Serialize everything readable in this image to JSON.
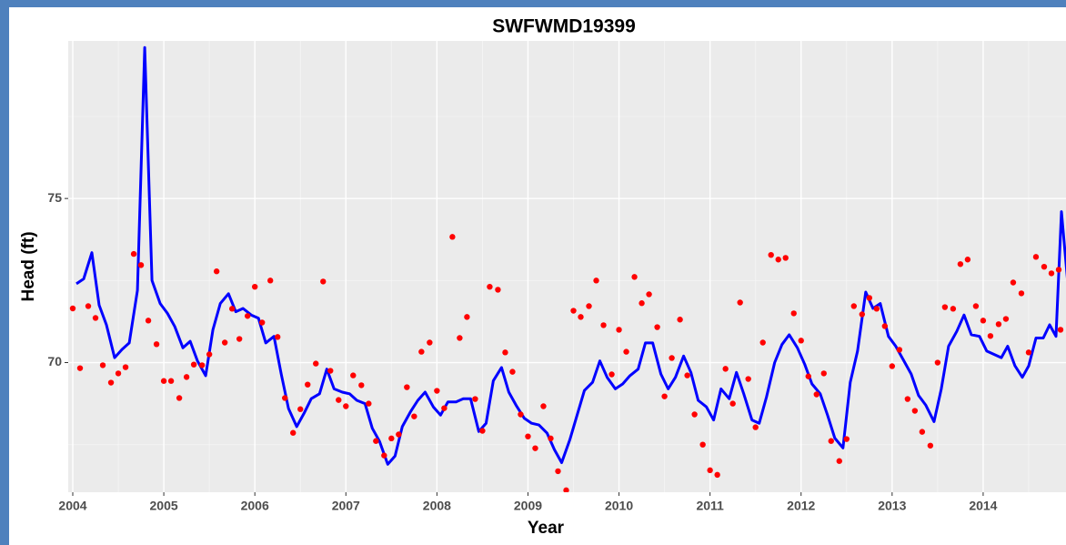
{
  "chart_data": {
    "type": "line",
    "title": "SWFWMD19399",
    "x_label": "Year",
    "y_label": "Head (ft)",
    "xlim": [
      2003.95,
      2014.91
    ],
    "ylim": [
      66.05,
      79.8
    ],
    "xticks": [
      2004,
      2005,
      2006,
      2007,
      2008,
      2009,
      2010,
      2011,
      2012,
      2013,
      2014
    ],
    "yticks": [
      70,
      75
    ],
    "xminor": [
      2004.5,
      2005.5,
      2006.5,
      2007.5,
      2008.5,
      2009.5,
      2010.5,
      2011.5,
      2012.5,
      2013.5,
      2014.5
    ],
    "yminor": [
      67.5,
      72.5,
      77.5
    ],
    "grid": true,
    "series": [
      {
        "type": "line",
        "color": "#0000ff",
        "x": [
          2004.04,
          2004.12,
          2004.21,
          2004.29,
          2004.37,
          2004.46,
          2004.54,
          2004.62,
          2004.71,
          2004.79,
          2004.87,
          2004.96,
          2005.04,
          2005.12,
          2005.21,
          2005.29,
          2005.37,
          2005.46,
          2005.54,
          2005.62,
          2005.71,
          2005.79,
          2005.87,
          2005.96,
          2006.04,
          2006.12,
          2006.21,
          2006.29,
          2006.37,
          2006.46,
          2006.54,
          2006.62,
          2006.71,
          2006.79,
          2006.87,
          2006.96,
          2007.04,
          2007.12,
          2007.21,
          2007.29,
          2007.37,
          2007.46,
          2007.54,
          2007.62,
          2007.71,
          2007.79,
          2007.87,
          2007.96,
          2008.04,
          2008.12,
          2008.21,
          2008.29,
          2008.37,
          2008.46,
          2008.54,
          2008.62,
          2008.71,
          2008.79,
          2008.87,
          2008.96,
          2009.04,
          2009.12,
          2009.21,
          2009.29,
          2009.37,
          2009.46,
          2009.54,
          2009.62,
          2009.71,
          2009.79,
          2009.87,
          2009.96,
          2010.04,
          2010.12,
          2010.21,
          2010.29,
          2010.37,
          2010.46,
          2010.54,
          2010.62,
          2010.71,
          2010.79,
          2010.87,
          2010.96,
          2011.04,
          2011.12,
          2011.21,
          2011.29,
          2011.37,
          2011.46,
          2011.54,
          2011.62,
          2011.71,
          2011.79,
          2011.87,
          2011.96,
          2012.04,
          2012.12,
          2012.21,
          2012.29,
          2012.37,
          2012.46,
          2012.54,
          2012.62,
          2012.71,
          2012.79,
          2012.87,
          2012.96,
          2013.04,
          2013.12,
          2013.21,
          2013.29,
          2013.37,
          2013.46,
          2013.54,
          2013.62,
          2013.71,
          2013.79,
          2013.87,
          2013.96,
          2014.04,
          2014.12,
          2014.2,
          2014.27,
          2014.35,
          2014.43,
          2014.5,
          2014.58,
          2014.66,
          2014.73,
          2014.8,
          2014.86,
          2014.93
        ],
        "values": [
          72.4,
          72.55,
          73.35,
          71.75,
          71.15,
          70.15,
          70.4,
          70.6,
          72.2,
          79.6,
          72.5,
          71.8,
          71.5,
          71.1,
          70.45,
          70.65,
          70.05,
          69.6,
          71.0,
          71.8,
          72.1,
          71.55,
          71.65,
          71.45,
          71.35,
          70.6,
          70.8,
          69.65,
          68.6,
          68.05,
          68.45,
          68.9,
          69.05,
          69.8,
          69.2,
          69.1,
          69.05,
          68.85,
          68.75,
          68.0,
          67.6,
          66.9,
          67.15,
          68.05,
          68.5,
          68.85,
          69.1,
          68.65,
          68.4,
          68.8,
          68.8,
          68.9,
          68.9,
          67.9,
          68.15,
          69.45,
          69.85,
          69.1,
          68.7,
          68.3,
          68.15,
          68.1,
          67.85,
          67.35,
          66.95,
          67.65,
          68.4,
          69.15,
          69.4,
          70.05,
          69.55,
          69.2,
          69.35,
          69.6,
          69.8,
          70.6,
          70.6,
          69.65,
          69.2,
          69.55,
          70.2,
          69.7,
          68.85,
          68.65,
          68.25,
          69.2,
          68.9,
          69.7,
          69.05,
          68.25,
          68.15,
          68.95,
          70.0,
          70.55,
          70.85,
          70.45,
          69.95,
          69.35,
          69.05,
          68.4,
          67.7,
          67.4,
          69.4,
          70.35,
          72.15,
          71.65,
          71.8,
          70.8,
          70.5,
          70.1,
          69.65,
          69.0,
          68.7,
          68.2,
          69.2,
          70.5,
          70.95,
          71.45,
          70.85,
          70.8,
          70.35,
          70.25,
          70.15,
          70.5,
          69.9,
          69.55,
          69.9,
          70.75,
          70.75,
          71.15,
          70.8,
          74.6,
          72.4
        ]
      },
      {
        "type": "scatter",
        "color": "#ff0000",
        "x": [
          2004.0,
          2004.08,
          2004.17,
          2004.25,
          2004.33,
          2004.42,
          2004.5,
          2004.58,
          2004.67,
          2004.75,
          2004.83,
          2004.92,
          2005.0,
          2005.08,
          2005.17,
          2005.25,
          2005.33,
          2005.42,
          2005.5,
          2005.58,
          2005.67,
          2005.75,
          2005.83,
          2005.92,
          2006.0,
          2006.08,
          2006.17,
          2006.25,
          2006.33,
          2006.42,
          2006.5,
          2006.58,
          2006.67,
          2006.75,
          2006.83,
          2006.92,
          2007.0,
          2007.08,
          2007.17,
          2007.25,
          2007.33,
          2007.42,
          2007.5,
          2007.58,
          2007.67,
          2007.75,
          2007.83,
          2007.92,
          2008.0,
          2008.08,
          2008.17,
          2008.25,
          2008.33,
          2008.42,
          2008.5,
          2008.58,
          2008.67,
          2008.75,
          2008.83,
          2008.92,
          2009.0,
          2009.08,
          2009.17,
          2009.25,
          2009.33,
          2009.42,
          2009.5,
          2009.58,
          2009.67,
          2009.75,
          2009.83,
          2009.92,
          2010.0,
          2010.08,
          2010.17,
          2010.25,
          2010.33,
          2010.42,
          2010.5,
          2010.58,
          2010.67,
          2010.75,
          2010.83,
          2010.92,
          2011.0,
          2011.08,
          2011.17,
          2011.25,
          2011.33,
          2011.42,
          2011.5,
          2011.58,
          2011.67,
          2011.75,
          2011.83,
          2011.92,
          2012.0,
          2012.08,
          2012.17,
          2012.25,
          2012.33,
          2012.42,
          2012.5,
          2012.58,
          2012.67,
          2012.75,
          2012.83,
          2012.92,
          2013.0,
          2013.08,
          2013.17,
          2013.25,
          2013.33,
          2013.42,
          2013.5,
          2013.58,
          2013.67,
          2013.75,
          2013.83,
          2013.92,
          2014.0,
          2014.08,
          2014.17,
          2014.25,
          2014.33,
          2014.42,
          2014.5,
          2014.58,
          2014.67,
          2014.75,
          2014.83,
          2014.85
        ],
        "values": [
          71.65,
          69.83,
          71.72,
          71.36,
          69.92,
          69.39,
          69.67,
          69.86,
          73.31,
          72.97,
          71.28,
          70.56,
          69.44,
          69.44,
          68.92,
          69.56,
          69.94,
          69.92,
          70.25,
          72.78,
          70.61,
          71.64,
          70.72,
          71.42,
          72.31,
          71.22,
          72.5,
          70.78,
          68.92,
          67.86,
          68.58,
          69.33,
          69.97,
          72.47,
          69.75,
          68.86,
          68.67,
          69.61,
          69.31,
          68.75,
          67.61,
          67.17,
          67.69,
          67.81,
          69.25,
          68.36,
          70.33,
          70.61,
          69.14,
          68.61,
          73.83,
          70.75,
          71.39,
          68.89,
          67.92,
          72.31,
          72.22,
          70.31,
          69.72,
          68.42,
          67.75,
          67.39,
          68.67,
          67.69,
          66.69,
          66.11,
          71.58,
          71.39,
          71.72,
          72.5,
          71.14,
          69.64,
          71.0,
          70.33,
          72.61,
          71.81,
          72.08,
          71.08,
          68.97,
          70.14,
          71.31,
          69.61,
          68.42,
          67.5,
          66.72,
          66.58,
          69.81,
          68.75,
          71.83,
          69.5,
          68.03,
          70.61,
          73.28,
          73.14,
          73.19,
          71.5,
          70.67,
          69.58,
          69.03,
          69.67,
          67.61,
          67.0,
          67.67,
          71.72,
          71.47,
          71.97,
          71.64,
          71.11,
          69.89,
          70.39,
          68.89,
          68.53,
          67.89,
          67.47,
          70.0,
          71.69,
          71.64,
          73.0,
          73.14,
          71.72,
          71.28,
          70.81,
          71.17,
          71.33,
          72.44,
          72.11,
          70.31,
          73.22,
          72.92,
          72.72,
          72.83,
          71.0
        ]
      }
    ]
  }
}
